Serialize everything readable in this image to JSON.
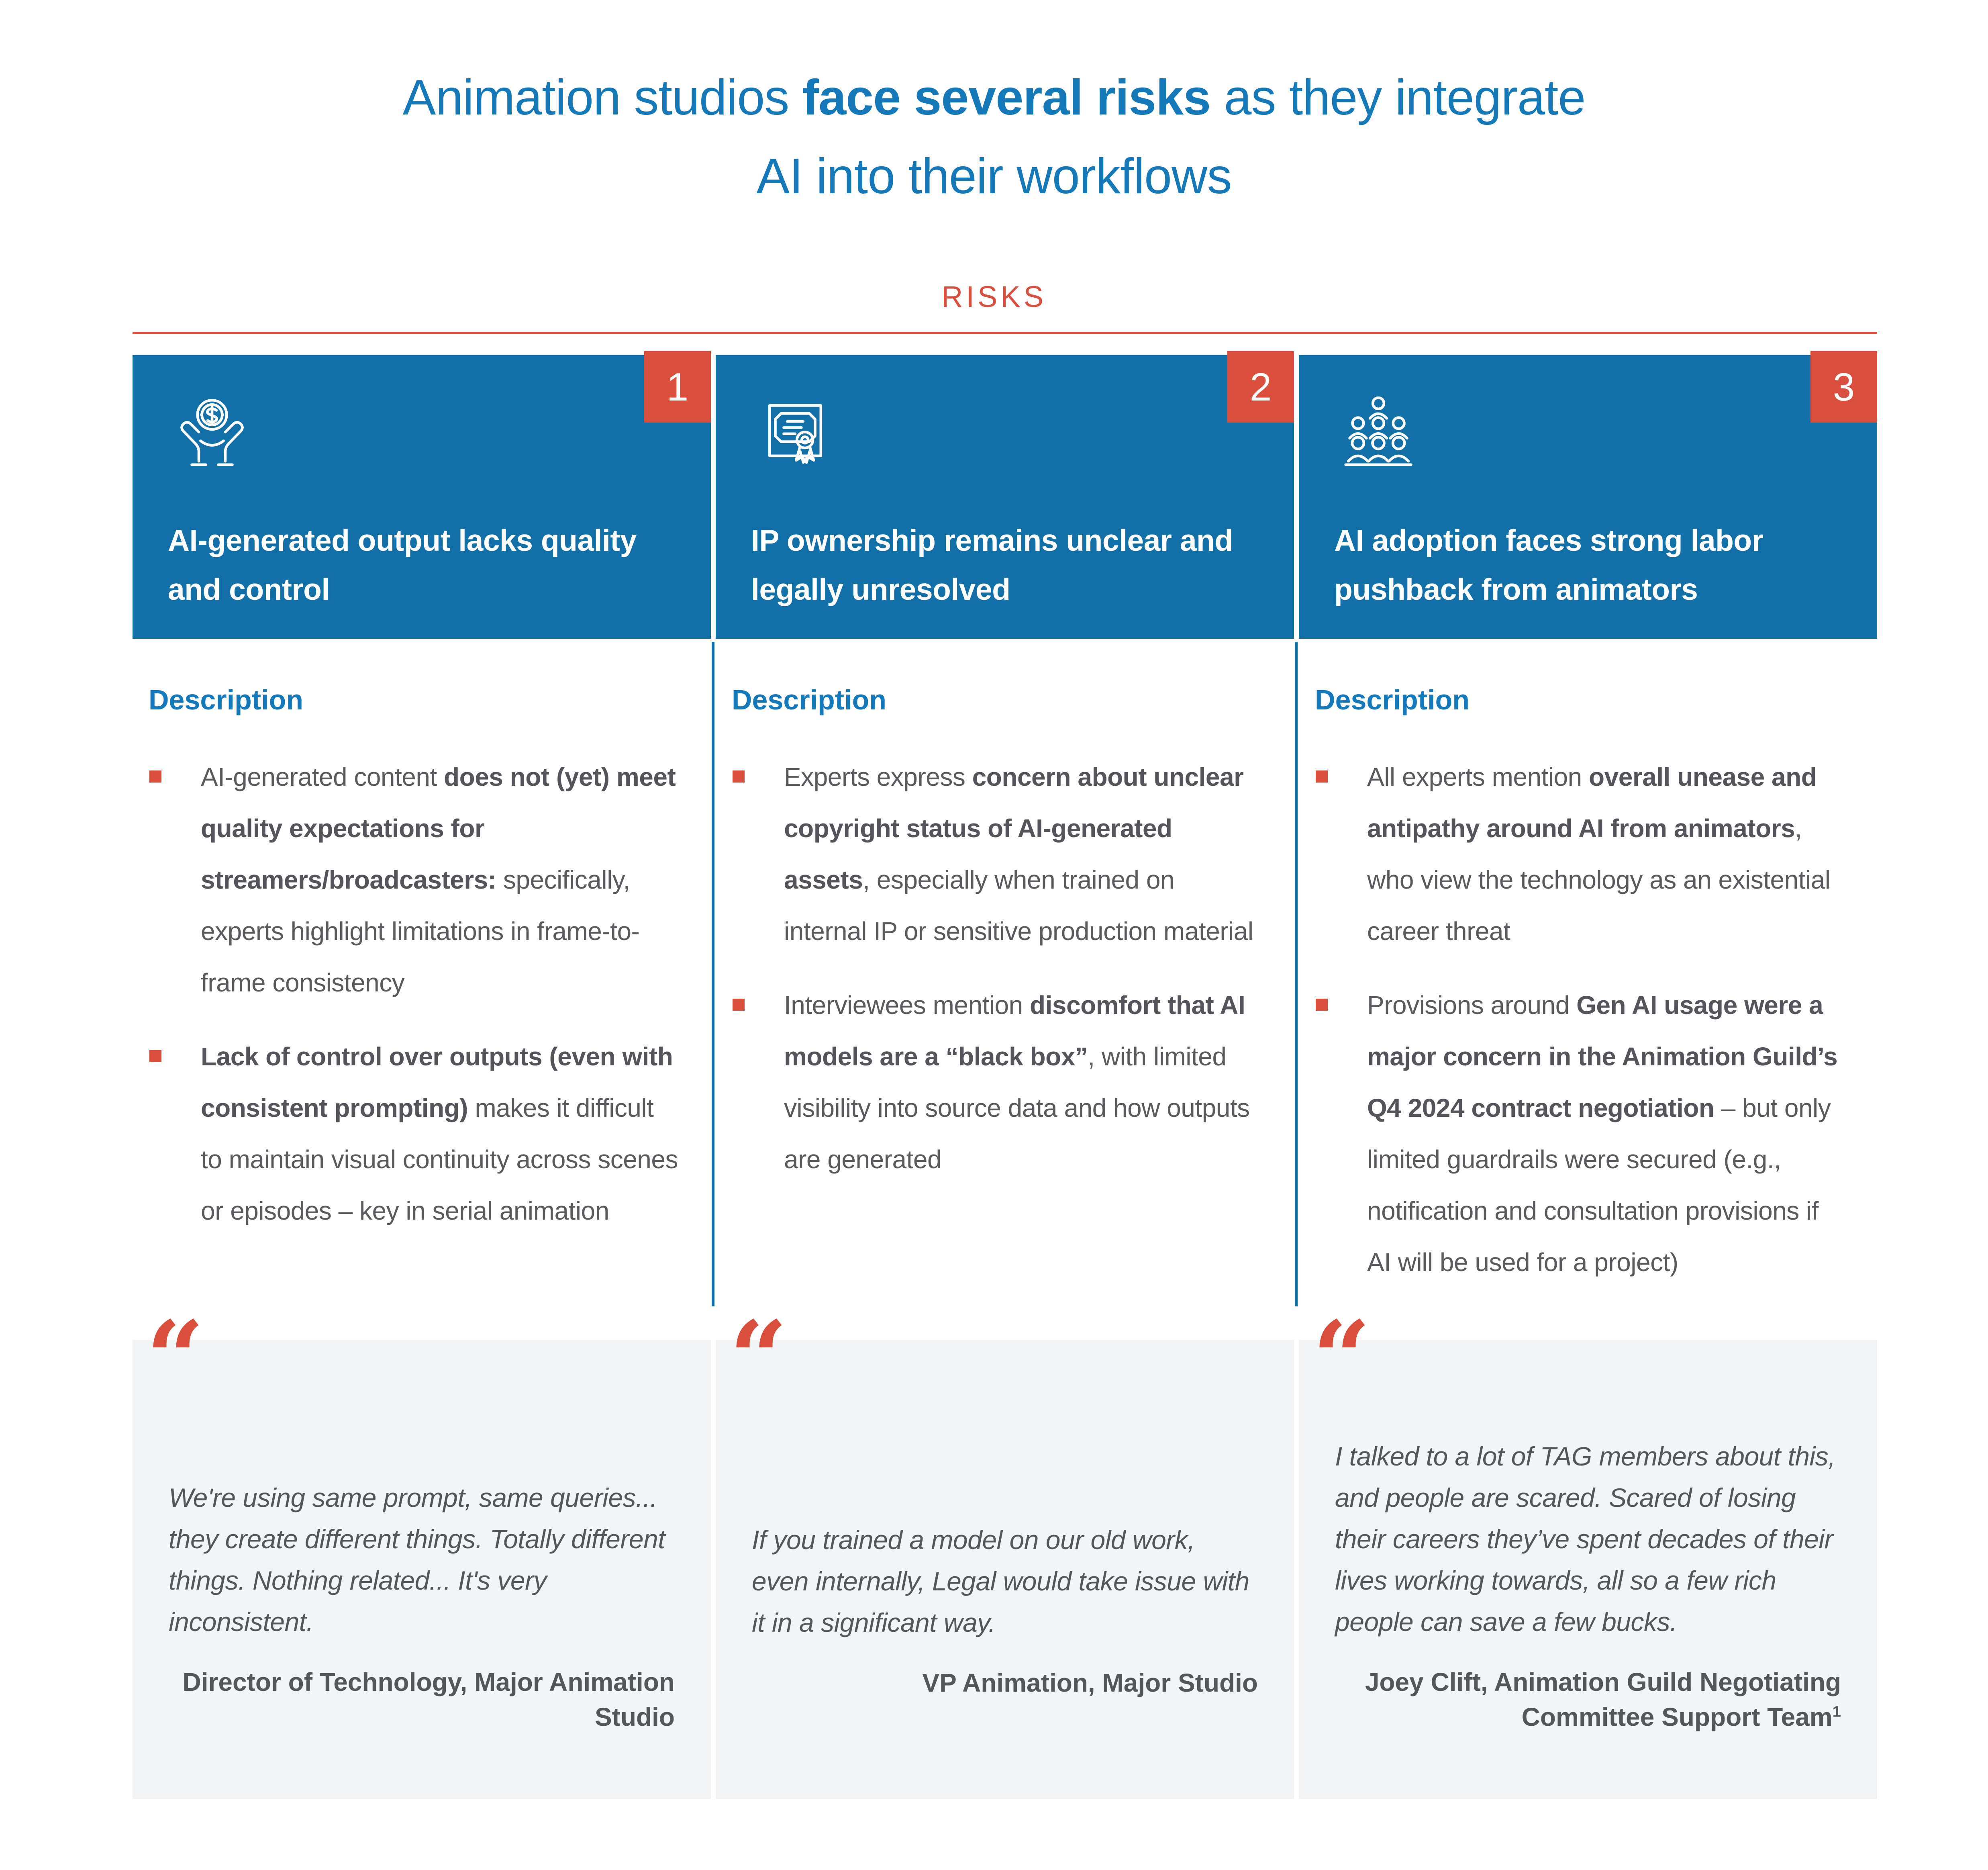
{
  "title": {
    "line1_pre": "Animation studios ",
    "line1_bold": "face several risks",
    "line1_post": " as they integrate",
    "line2": "AI into their workflows"
  },
  "risks_label": "RISKS",
  "description_heading": "Description",
  "colors": {
    "title-blue": "#1579B9",
    "heading-blue": "#1378BC",
    "header-blue": "#136FA8",
    "accent": "#D94E3C",
    "body-gray": "#595A5E",
    "quote-bg": "#F2F4F6",
    "quote-gray": "#54565B"
  },
  "columns": [
    {
      "number": "1",
      "icon": "hands-holding-coin-icon",
      "title": "AI-generated output lacks quality and control",
      "bullets": [
        [
          {
            "t": "AI-generated content "
          },
          {
            "t": "does not (yet) meet quality expectations for streamers/broadcasters:",
            "b": true
          },
          {
            "t": " specifically, experts highlight limitations in frame-to-frame consistency"
          }
        ],
        [
          {
            "t": "Lack of control over outputs (even with consistent prompting)",
            "b": true
          },
          {
            "t": " makes it difficult to maintain visual continuity across scenes or episodes – key in serial animation"
          }
        ]
      ],
      "quote": "We're using same prompt, same queries... they create different things. Totally different things. Nothing related... It's very inconsistent.",
      "attribution": [
        {
          "t": "Director of Technology, Major Animation Studio"
        }
      ]
    },
    {
      "number": "2",
      "icon": "certificate-icon",
      "title": "IP ownership remains unclear and legally unresolved",
      "bullets": [
        [
          {
            "t": "Experts express "
          },
          {
            "t": "concern about unclear copyright status of AI-generated assets",
            "b": true
          },
          {
            "t": ", especially when trained on internal IP or sensitive production material"
          }
        ],
        [
          {
            "t": "Interviewees mention "
          },
          {
            "t": "discomfort that AI models are a “black box”",
            "b": true
          },
          {
            "t": ", with limited visibility into source data and how outputs are generated"
          }
        ]
      ],
      "quote": "If you trained a model on our old work, even internally, Legal would take issue with it in a significant way.",
      "attribution": [
        {
          "t": "VP Animation, Major Studio"
        }
      ]
    },
    {
      "number": "3",
      "icon": "people-group-icon",
      "title": "AI adoption faces strong labor pushback from animators",
      "bullets": [
        [
          {
            "t": "All experts mention "
          },
          {
            "t": "overall unease and antipathy around AI from animators",
            "b": true
          },
          {
            "t": ", who view the technology as an existential career threat"
          }
        ],
        [
          {
            "t": "Provisions around "
          },
          {
            "t": "Gen AI usage were a major concern in the Animation Guild’s Q4 2024 contract negotiation",
            "b": true
          },
          {
            "t": " – but only limited guardrails were secured (e.g., notification and consultation provisions if AI will be used for a project)"
          }
        ]
      ],
      "quote": "I talked to a lot of TAG members about this, and people are scared. Scared of losing their careers they’ve spent decades of their lives working towards, all so a few rich people can save a few bucks.",
      "attribution": [
        {
          "t": "Joey Clift, Animation Guild Negotiating Committee Support Team"
        },
        {
          "t": "1",
          "sup": true
        }
      ]
    }
  ]
}
